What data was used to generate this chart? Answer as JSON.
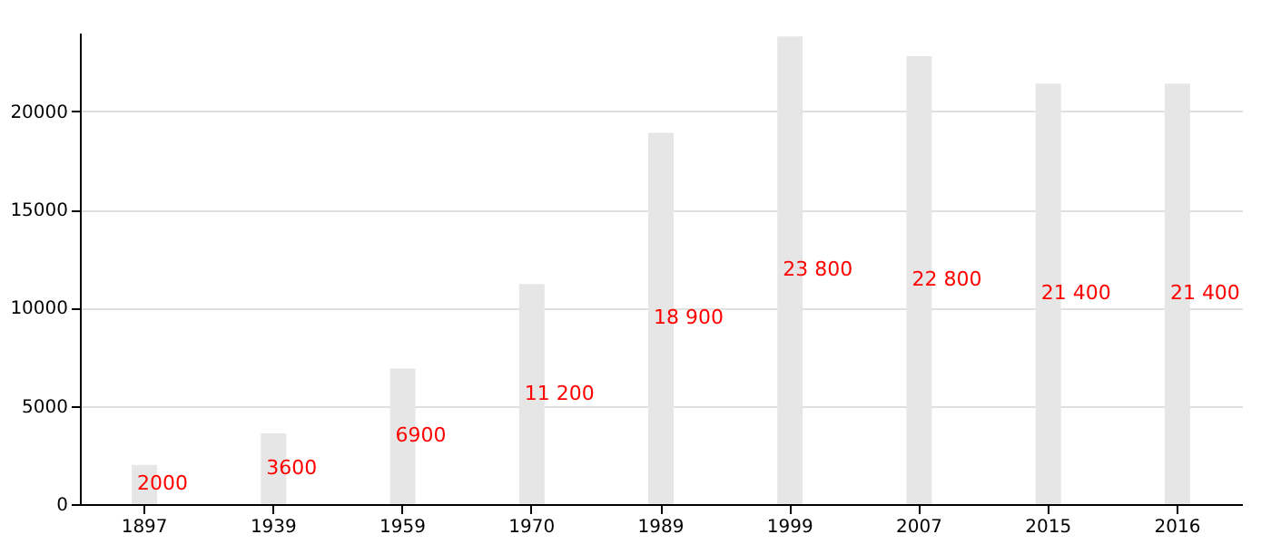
{
  "chart_data": {
    "type": "bar",
    "categories": [
      "1897",
      "1939",
      "1959",
      "1970",
      "1989",
      "1999",
      "2007",
      "2015",
      "2016"
    ],
    "series": [
      {
        "color": "#e6e6e6",
        "values": [
          2000,
          3600,
          6900,
          11200,
          18900,
          23800,
          22800,
          21400,
          21400
        ],
        "value_labels": [
          "2000",
          "3600",
          "6900",
          "11 200",
          "18 900",
          "23 800",
          "22 800",
          "21 400",
          "21 400"
        ]
      }
    ],
    "ylim": [
      0,
      24000
    ],
    "yticks": [
      0,
      5000,
      10000,
      15000,
      20000
    ],
    "grid": "y"
  }
}
